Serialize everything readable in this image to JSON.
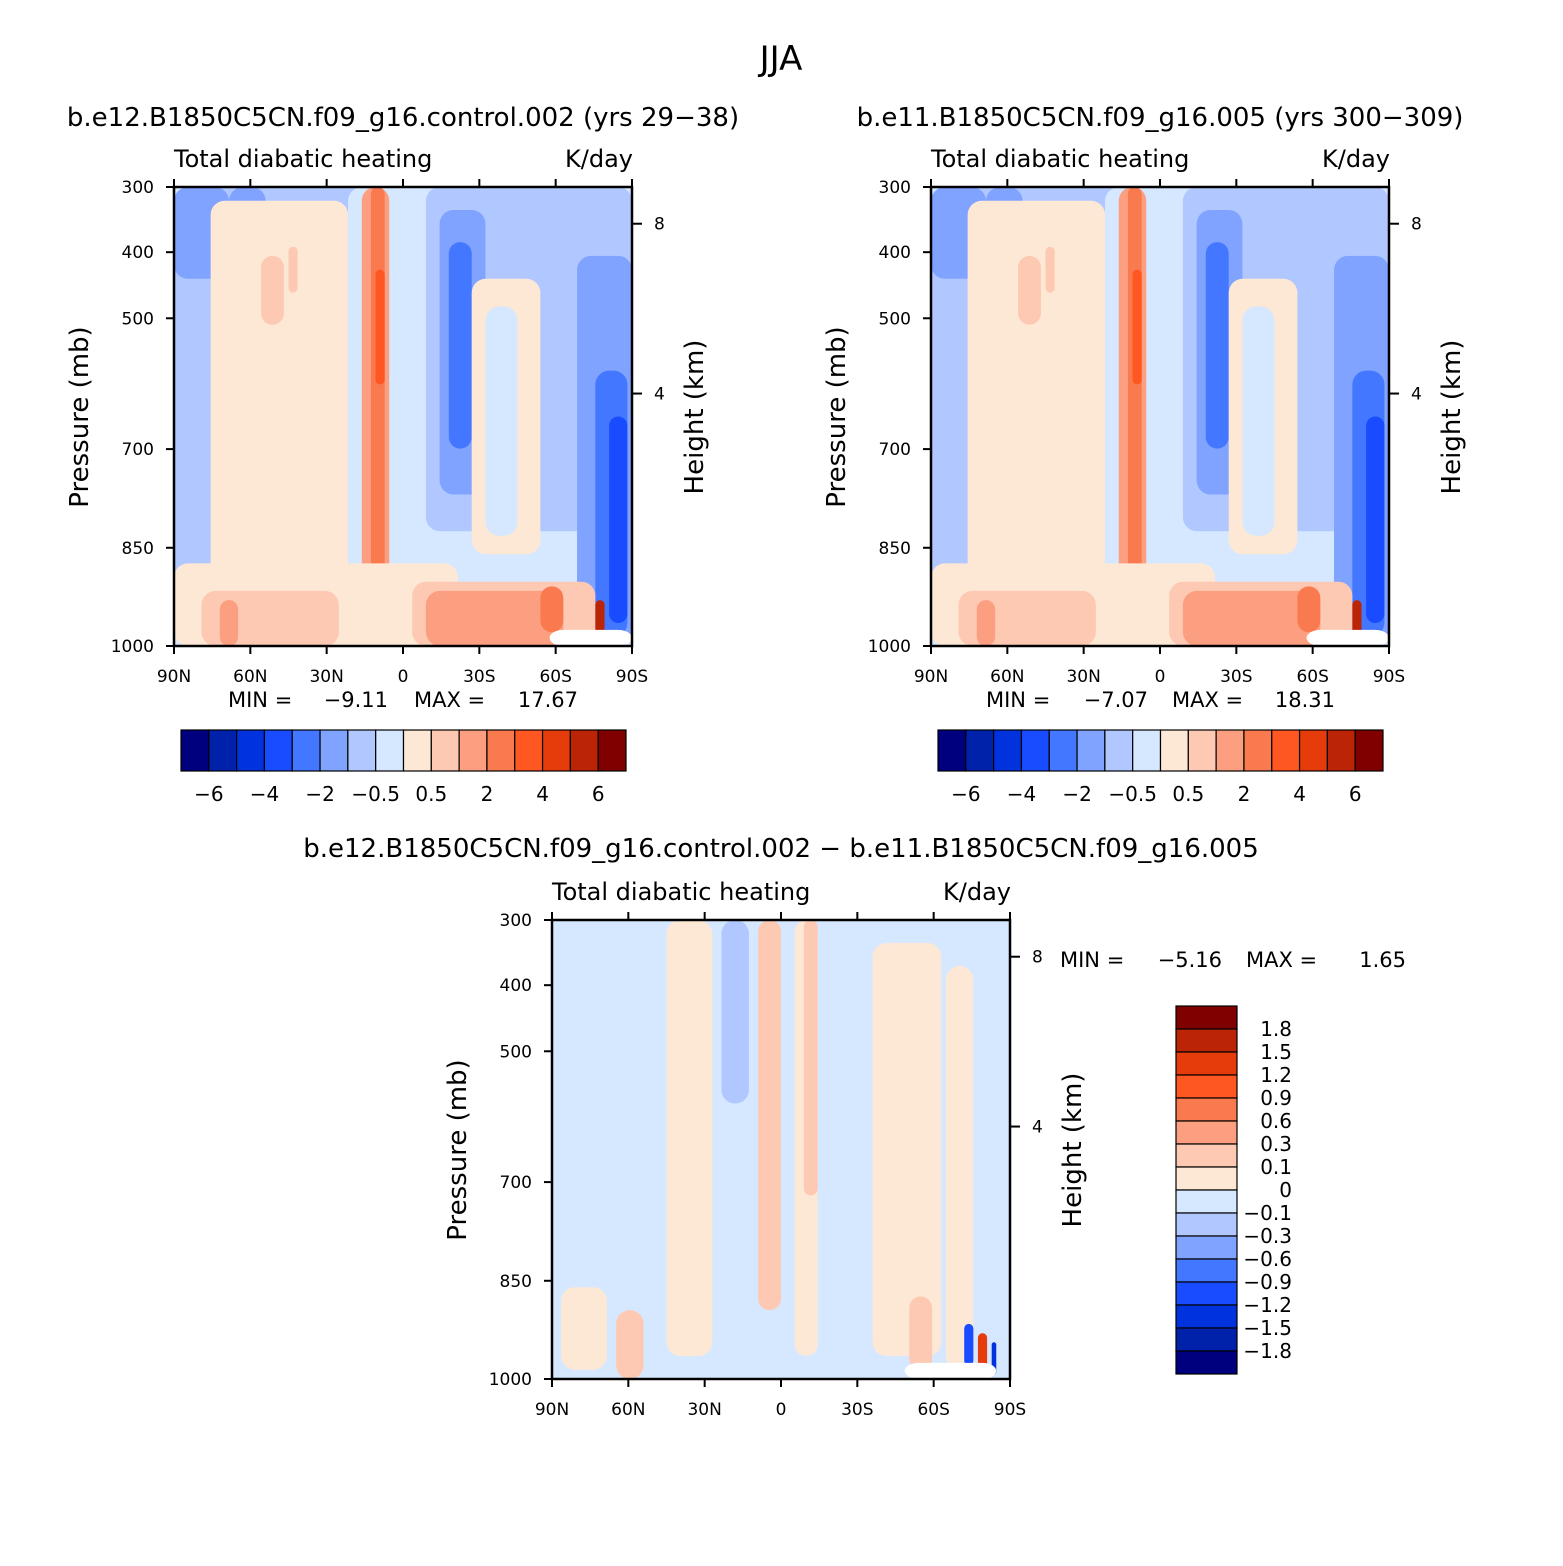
{
  "figure_title": "JJA",
  "colors": {
    "abs": [
      "#00007f",
      "#0022aa",
      "#0033dd",
      "#1a4cff",
      "#4477ff",
      "#7fa3ff",
      "#b0c8ff",
      "#d6e8ff",
      "#fde8d6",
      "#fdc9b2",
      "#fb9f80",
      "#fa7a50",
      "#ff5722",
      "#e63b0b",
      "#bb2405",
      "#800000"
    ],
    "diff": [
      "#00007f",
      "#0022aa",
      "#0033dd",
      "#1a4cff",
      "#4477ff",
      "#7fa3ff",
      "#b0c8ff",
      "#d6e8ff",
      "#fde8d6",
      "#fdc9b2",
      "#fb9f80",
      "#fa7a50",
      "#ff5722",
      "#e63b0b",
      "#bb2405",
      "#800000"
    ]
  },
  "chart_data": [
    {
      "type": "heatmap",
      "title": "b.e12.B1850C5CN.f09_g16.control.002 (yrs 29−38)",
      "left_label": "Total diabatic heating",
      "right_label": "K/day",
      "xlabel": "",
      "ylabel": "Pressure (mb)",
      "ylabel_right": "Height (km)",
      "x_ticks": [
        "90N",
        "60N",
        "30N",
        "0",
        "30S",
        "60S",
        "90S"
      ],
      "y_ticks": [
        "300",
        "400",
        "500",
        "700",
        "850",
        "1000"
      ],
      "y_right_ticks": [
        "8",
        "4"
      ],
      "min_label": "MIN =",
      "min_value": "−9.11",
      "max_label": "MAX =",
      "max_value": "17.67",
      "colorbar_labels": [
        "−6",
        "−4",
        "−2",
        "−0.5",
        "0.5",
        "2",
        "4",
        "6"
      ]
    },
    {
      "type": "heatmap",
      "title": "b.e11.B1850C5CN.f09_g16.005 (yrs 300−309)",
      "left_label": "Total diabatic heating",
      "right_label": "K/day",
      "xlabel": "",
      "ylabel": "Pressure (mb)",
      "ylabel_right": "Height (km)",
      "x_ticks": [
        "90N",
        "60N",
        "30N",
        "0",
        "30S",
        "60S",
        "90S"
      ],
      "y_ticks": [
        "300",
        "400",
        "500",
        "700",
        "850",
        "1000"
      ],
      "y_right_ticks": [
        "8",
        "4"
      ],
      "min_label": "MIN =",
      "min_value": "−7.07",
      "max_label": "MAX =",
      "max_value": "18.31",
      "colorbar_labels": [
        "−6",
        "−4",
        "−2",
        "−0.5",
        "0.5",
        "2",
        "4",
        "6"
      ]
    },
    {
      "type": "heatmap",
      "title": "b.e12.B1850C5CN.f09_g16.control.002 − b.e11.B1850C5CN.f09_g16.005",
      "left_label": "Total diabatic heating",
      "right_label": "K/day",
      "xlabel": "",
      "ylabel": "Pressure (mb)",
      "ylabel_right": "Height (km)",
      "x_ticks": [
        "90N",
        "60N",
        "30N",
        "0",
        "30S",
        "60S",
        "90S"
      ],
      "y_ticks": [
        "300",
        "400",
        "500",
        "700",
        "850",
        "1000"
      ],
      "y_right_ticks": [
        "8",
        "4"
      ],
      "min_label": "MIN =",
      "min_value": "−5.16",
      "max_label": "MAX =",
      "max_value": "1.65",
      "colorbar_labels": [
        "1.8",
        "1.5",
        "1.2",
        "0.9",
        "0.6",
        "0.3",
        "0.1",
        "0",
        "−0.1",
        "−0.3",
        "−0.6",
        "−0.9",
        "−1.2",
        "−1.5",
        "−1.8"
      ]
    }
  ]
}
